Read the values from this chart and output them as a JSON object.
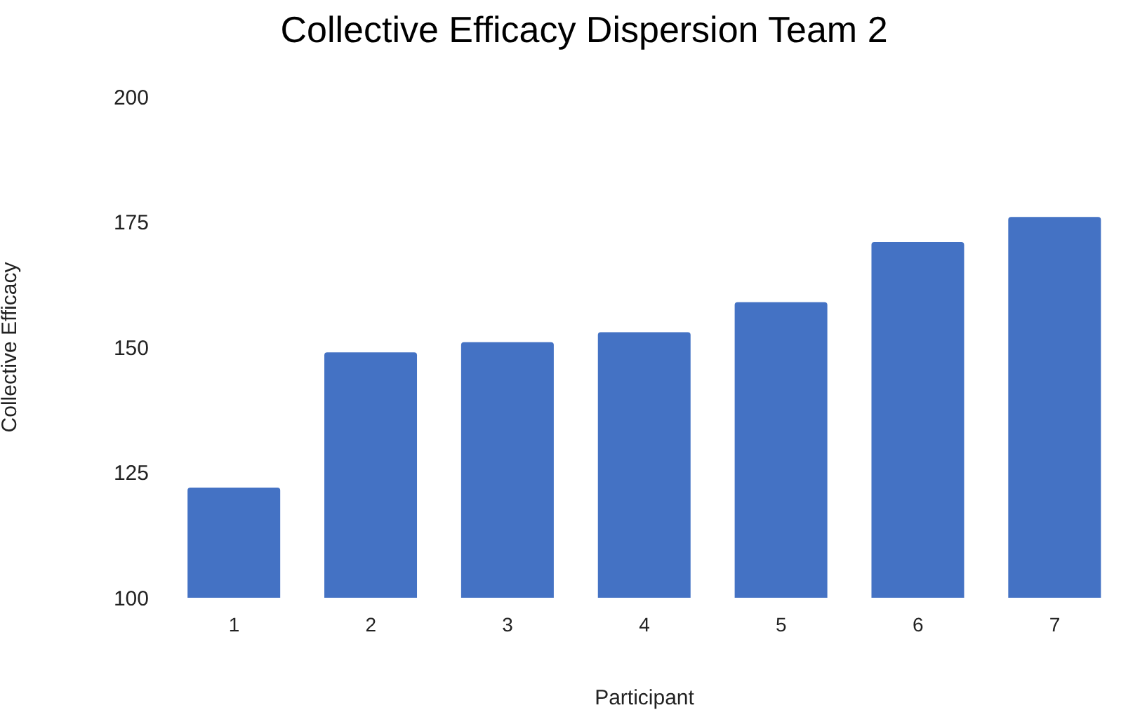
{
  "chart_data": {
    "type": "bar",
    "title": "Collective Efficacy Dispersion Team 2",
    "xlabel": "Participant",
    "ylabel": "Collective Efficacy",
    "categories": [
      "1",
      "2",
      "3",
      "4",
      "5",
      "6",
      "7"
    ],
    "values": [
      122,
      149,
      151,
      153,
      159,
      171,
      176
    ],
    "color": "#4472c4",
    "ylim": [
      100,
      200
    ],
    "yticks": [
      100,
      125,
      150,
      175,
      200
    ],
    "grid": false
  }
}
